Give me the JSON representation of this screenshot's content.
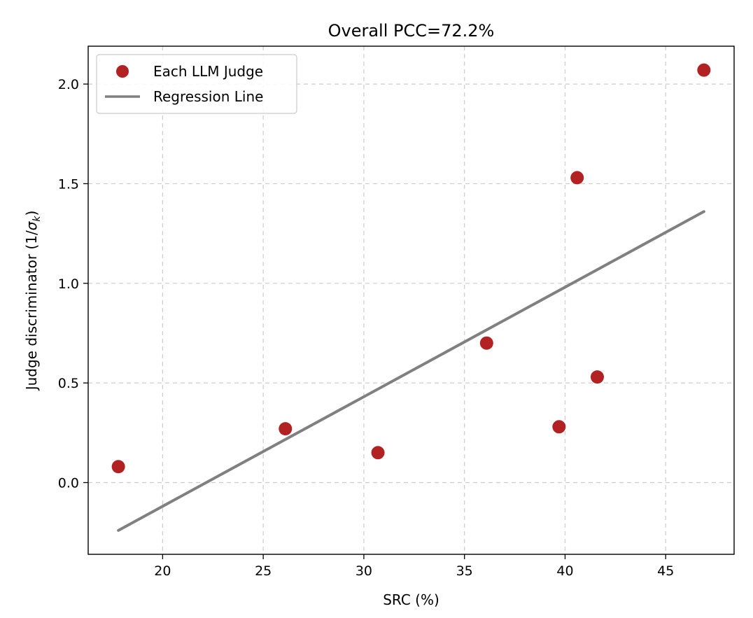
{
  "chart_data": {
    "type": "scatter",
    "title": "Overall PCC=72.2%",
    "xlabel": "SRC (%)",
    "ylabel_prefix": "Judge discriminator (1/",
    "ylabel_symbol": "σ",
    "ylabel_subscript": "k",
    "ylabel_suffix": ")",
    "xlim": [
      16.3,
      48.4
    ],
    "ylim": [
      -0.36,
      2.19
    ],
    "xticks": [
      20,
      25,
      30,
      35,
      40,
      45
    ],
    "xtick_labels": [
      "20",
      "25",
      "30",
      "35",
      "40",
      "45"
    ],
    "yticks": [
      0.0,
      0.5,
      1.0,
      1.5,
      2.0
    ],
    "ytick_labels": [
      "0.0",
      "0.5",
      "1.0",
      "1.5",
      "2.0"
    ],
    "grid": true,
    "legend": "top-left",
    "series": [
      {
        "name": "Each LLM Judge",
        "kind": "scatter",
        "color": "#b22222",
        "points": [
          {
            "x": 17.8,
            "y": 0.08
          },
          {
            "x": 26.1,
            "y": 0.27
          },
          {
            "x": 30.7,
            "y": 0.15
          },
          {
            "x": 36.1,
            "y": 0.7
          },
          {
            "x": 39.7,
            "y": 0.28
          },
          {
            "x": 40.6,
            "y": 1.53
          },
          {
            "x": 41.6,
            "y": 0.53
          },
          {
            "x": 46.9,
            "y": 2.07
          }
        ]
      },
      {
        "name": "Regression Line",
        "kind": "line",
        "color": "#808080",
        "points": [
          {
            "x": 17.8,
            "y": -0.24
          },
          {
            "x": 46.9,
            "y": 1.36
          }
        ]
      }
    ]
  }
}
